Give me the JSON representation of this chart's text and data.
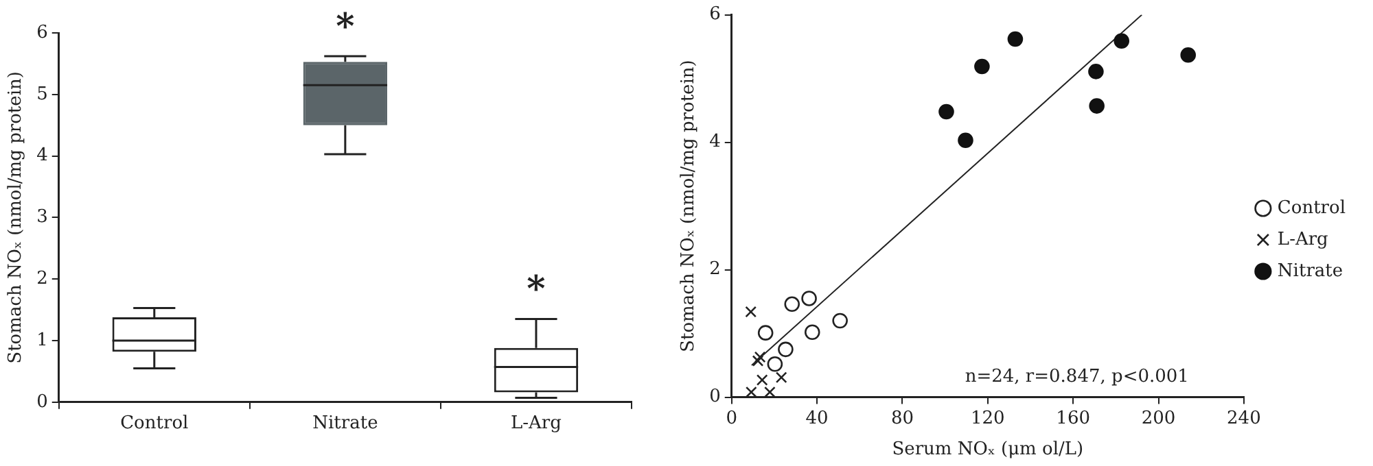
{
  "chart_data": [
    {
      "type": "box",
      "ylabel": "Stomach NOₓ (nmol/mg protein)",
      "categories": [
        "Control",
        "Nitrate",
        "L-Arg"
      ],
      "colors": [
        "#ffffff",
        "#5b6569",
        "#ffffff"
      ],
      "boxes": [
        {
          "low": 0.55,
          "q1": 0.82,
          "median": 1.0,
          "q3": 1.38,
          "high": 1.53
        },
        {
          "low": 4.03,
          "q1": 4.5,
          "median": 5.15,
          "q3": 5.53,
          "high": 5.62
        },
        {
          "low": 0.07,
          "q1": 0.16,
          "median": 0.57,
          "q3": 0.88,
          "high": 1.35
        }
      ],
      "ylim": [
        0,
        6
      ],
      "yticks": [
        0,
        1,
        2,
        3,
        4,
        5,
        6
      ],
      "grid": false,
      "legend": false,
      "annotations": [
        {
          "text": "*",
          "x": "Nitrate",
          "y": 5.62
        },
        {
          "text": "*",
          "x": "L-Arg",
          "y": 1.35
        }
      ]
    },
    {
      "type": "scatter",
      "xlabel": "Serum NOₓ (μm ol/L)",
      "ylabel": "Stomach NOₓ (nmol/mg protein)",
      "xlim": [
        0,
        240
      ],
      "xticks": [
        0,
        40,
        80,
        120,
        160,
        200,
        240
      ],
      "ylim": [
        0,
        6
      ],
      "yticks": [
        0,
        2,
        4,
        6
      ],
      "grid": false,
      "legend": "right",
      "series": [
        {
          "name": "Control",
          "color": "#222222",
          "marker": "circle",
          "x": [
            15.9,
            28.3,
            36.3,
            50.8,
            37.8,
            25.3,
            20.3
          ],
          "values": [
            1.01,
            1.46,
            1.55,
            1.2,
            1.02,
            0.75,
            0.52
          ]
        },
        {
          "name": "L-Arg",
          "color": "#222222",
          "marker": "cross",
          "x": [
            9.0,
            13.3,
            12.3,
            14.3,
            9.2,
            17.9,
            23.3
          ],
          "values": [
            1.34,
            0.63,
            0.57,
            0.27,
            0.08,
            0.08,
            0.31
          ]
        },
        {
          "name": "Nitrate",
          "color": "#111111",
          "marker": "circle",
          "x": [
            100.6,
            109.6,
            117.3,
            132.9,
            170.7,
            171.1,
            182.7,
            213.9
          ],
          "values": [
            4.48,
            4.03,
            5.19,
            5.62,
            5.11,
            4.57,
            5.59,
            5.37
          ]
        },
        {
          "type": "line",
          "color": "#222222",
          "x": [
            9.4,
            192.2
          ],
          "values": [
            0.5,
            6.0
          ]
        }
      ],
      "annotations": [
        "n=24, r=0.847, p<0.001"
      ]
    }
  ]
}
